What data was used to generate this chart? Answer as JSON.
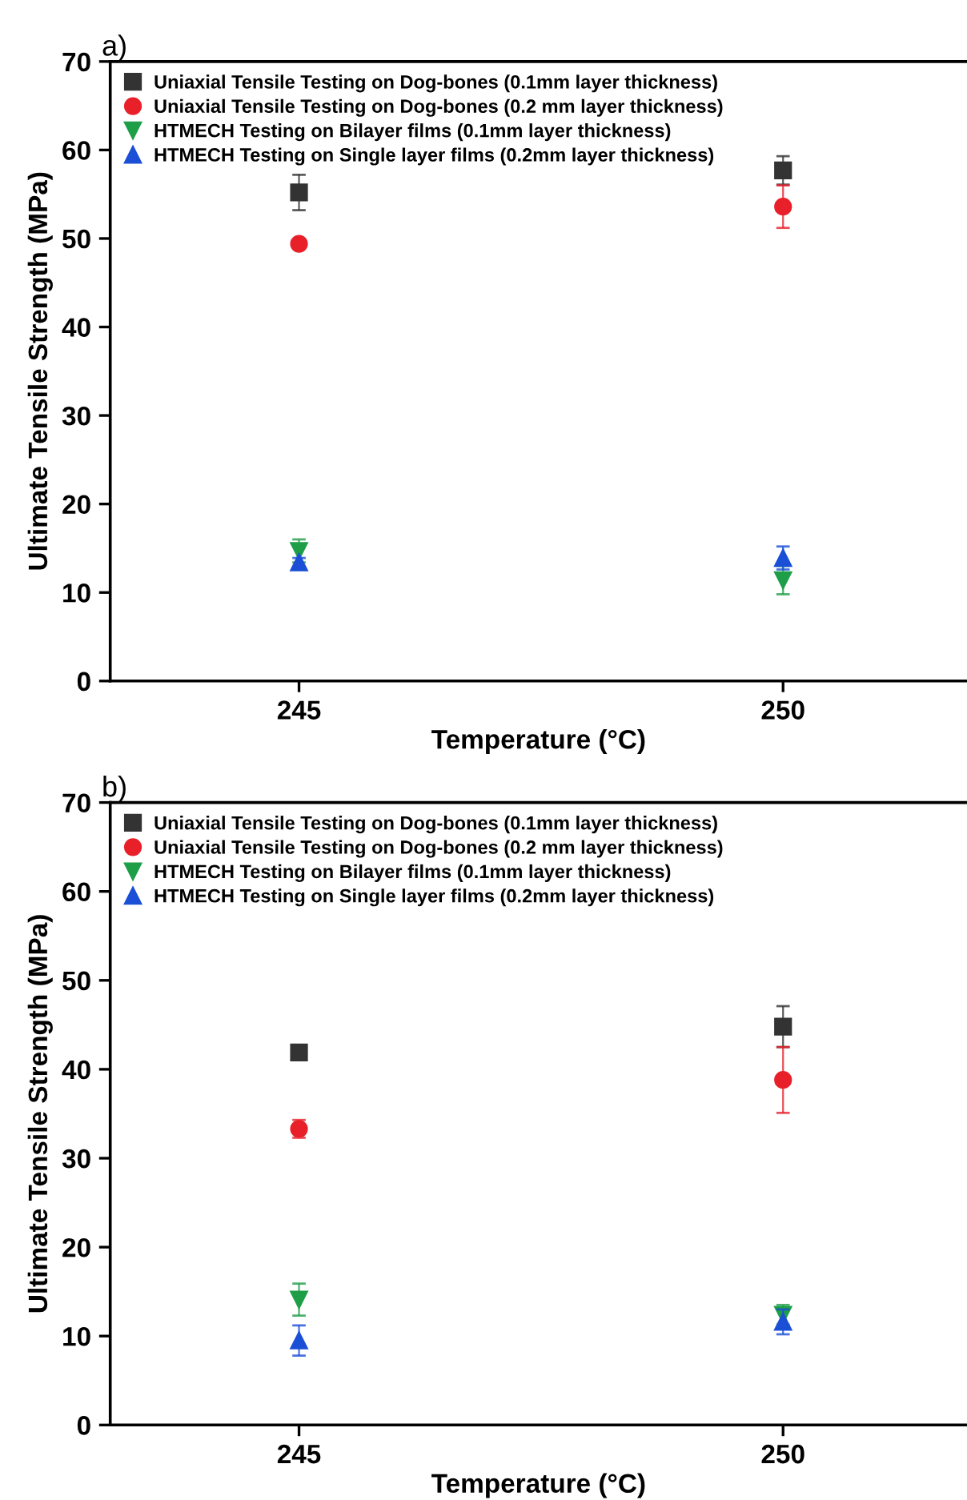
{
  "chart_data": [
    {
      "type": "scatter",
      "title": "a)",
      "xlabel": "Temperature (°C)",
      "ylabel": "Ultimate Tensile Strength (MPa)",
      "categories": [
        "245",
        "250"
      ],
      "ylim": [
        0,
        70
      ],
      "yticks": [
        0,
        10,
        20,
        30,
        40,
        50,
        60,
        70
      ],
      "grid": false,
      "legend": "top left",
      "series": [
        {
          "name": "Uniaxial Tensile Testing on Dog-bones (0.1mm layer thickness)",
          "color": "#333333",
          "marker": "square",
          "values": [
            55.2,
            57.7
          ],
          "errors": [
            2.0,
            1.6
          ]
        },
        {
          "name": "Uniaxial Tensile Testing on Dog-bones (0.2 mm layer thickness)",
          "color": "#e8202a",
          "marker": "circle",
          "values": [
            49.4,
            53.6
          ],
          "errors": [
            null,
            2.4
          ]
        },
        {
          "name": "HTMECH Testing on Bilayer films (0.1mm layer thickness)",
          "color": "#1f9e48",
          "marker": "triangle_down",
          "values": [
            14.7,
            11.4
          ],
          "errors": [
            1.3,
            1.6
          ]
        },
        {
          "name": "HTMECH Testing on Single layer films (0.2mm layer thickness)",
          "color": "#1a4fd6",
          "marker": "triangle",
          "values": [
            13.4,
            13.9
          ],
          "errors": [
            0.5,
            1.3
          ]
        }
      ]
    },
    {
      "type": "scatter",
      "title": "b)",
      "xlabel": "Temperature (°C)",
      "ylabel": "Ultimate Tensile Strength (MPa)",
      "categories": [
        "245",
        "250"
      ],
      "ylim": [
        0,
        70
      ],
      "yticks": [
        0,
        10,
        20,
        30,
        40,
        50,
        60,
        70
      ],
      "grid": false,
      "legend": "top left",
      "series": [
        {
          "name": "Uniaxial Tensile Testing on Dog-bones (0.1mm layer thickness)",
          "color": "#333333",
          "marker": "square",
          "values": [
            41.9,
            44.8
          ],
          "errors": [
            0.8,
            2.3
          ]
        },
        {
          "name": "Uniaxial Tensile Testing on Dog-bones (0.2 mm layer thickness)",
          "color": "#e8202a",
          "marker": "circle",
          "values": [
            33.3,
            38.8
          ],
          "errors": [
            1.0,
            3.7
          ]
        },
        {
          "name": "HTMECH Testing on Bilayer films (0.1mm layer thickness)",
          "color": "#1f9e48",
          "marker": "triangle_down",
          "values": [
            14.1,
            12.4
          ],
          "errors": [
            1.8,
            1.1
          ]
        },
        {
          "name": "HTMECH Testing on Single layer films (0.2mm layer thickness)",
          "color": "#1a4fd6",
          "marker": "triangle",
          "values": [
            9.5,
            11.6
          ],
          "errors": [
            1.7,
            1.4
          ]
        }
      ]
    }
  ]
}
